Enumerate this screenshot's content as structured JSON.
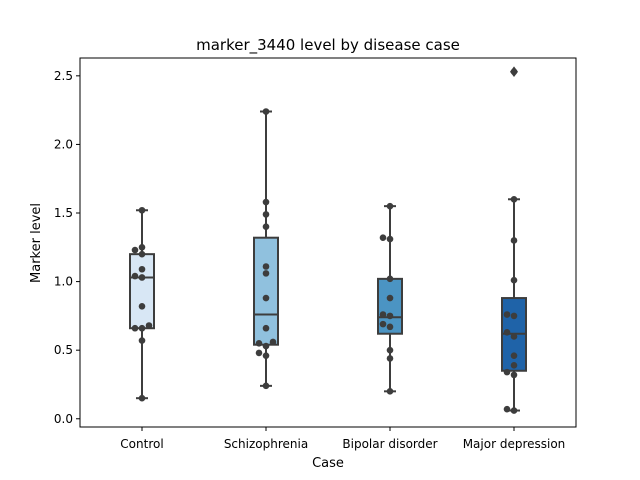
{
  "chart_data": {
    "type": "box",
    "title": "marker_3440 level by disease case",
    "xlabel": "Case",
    "ylabel": "Marker level",
    "ylim": [
      -0.06,
      2.63
    ],
    "yticks": [
      "0.0",
      "0.5",
      "1.0",
      "1.5",
      "2.0",
      "2.5"
    ],
    "grid": false,
    "categories": [
      "Control",
      "Schizophrenia",
      "Bipolar disorder",
      "Major depression"
    ],
    "series": [
      {
        "category": "Control",
        "color": "#d8e7f5",
        "box": {
          "whisker_low": 0.15,
          "q1": 0.66,
          "median": 1.03,
          "q3": 1.2,
          "whisker_high": 1.52
        },
        "outliers": [],
        "points": [
          0.15,
          0.57,
          0.66,
          0.66,
          0.68,
          0.82,
          1.03,
          1.04,
          1.09,
          1.2,
          1.23,
          1.25,
          1.52
        ]
      },
      {
        "category": "Schizophrenia",
        "color": "#90c1de",
        "box": {
          "whisker_low": 0.24,
          "q1": 0.54,
          "median": 0.76,
          "q3": 1.32,
          "whisker_high": 2.24
        },
        "outliers": [],
        "points": [
          0.24,
          0.46,
          0.48,
          0.53,
          0.56,
          0.55,
          0.66,
          0.88,
          1.06,
          1.11,
          1.4,
          1.49,
          1.58,
          2.24
        ]
      },
      {
        "category": "Bipolar disorder",
        "color": "#4b94c3",
        "box": {
          "whisker_low": 0.2,
          "q1": 0.62,
          "median": 0.74,
          "q3": 1.02,
          "whisker_high": 1.55
        },
        "outliers": [],
        "points": [
          0.2,
          0.44,
          0.5,
          0.67,
          0.69,
          0.75,
          0.76,
          0.88,
          1.02,
          1.31,
          1.32,
          1.55
        ]
      },
      {
        "category": "Major depression",
        "color": "#1f63a8",
        "box": {
          "whisker_low": 0.06,
          "q1": 0.35,
          "median": 0.62,
          "q3": 0.88,
          "whisker_high": 1.6
        },
        "outliers": [
          2.53
        ],
        "points": [
          0.06,
          0.07,
          0.32,
          0.34,
          0.39,
          0.46,
          0.6,
          0.63,
          0.75,
          0.76,
          1.01,
          1.3,
          1.6,
          2.53
        ]
      }
    ]
  }
}
